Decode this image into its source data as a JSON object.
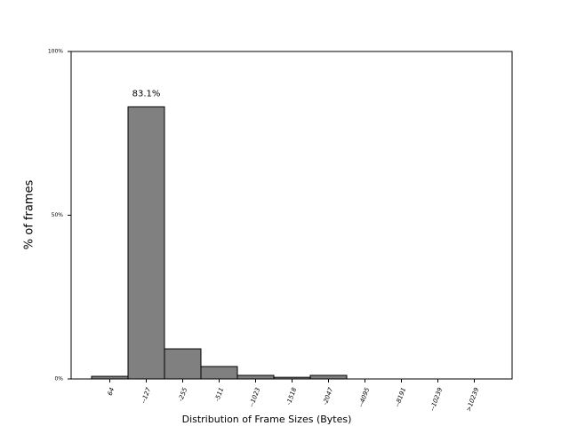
{
  "chart_data": {
    "type": "bar",
    "categories": [
      "64",
      "--127",
      "-255",
      "-511",
      "--1023",
      "-1518",
      "-2047",
      "--4095",
      "--8191",
      "--10239",
      ">10239"
    ],
    "values": [
      0.8,
      83.1,
      9.2,
      3.8,
      1.1,
      0.5,
      1.1,
      0,
      0,
      0,
      0
    ],
    "value_labels": [
      null,
      "83.1%",
      null,
      null,
      null,
      null,
      null,
      null,
      null,
      null,
      null
    ],
    "color": "#808080",
    "xlabel": "Distribution of Frame Sizes (Bytes)",
    "ylabel": "% of frames",
    "ylim": [
      0,
      100
    ],
    "yticks": [
      {
        "value": 0,
        "label": "0%"
      },
      {
        "value": 50,
        "label": "50%"
      },
      {
        "value": 100,
        "label": "100%"
      }
    ]
  }
}
